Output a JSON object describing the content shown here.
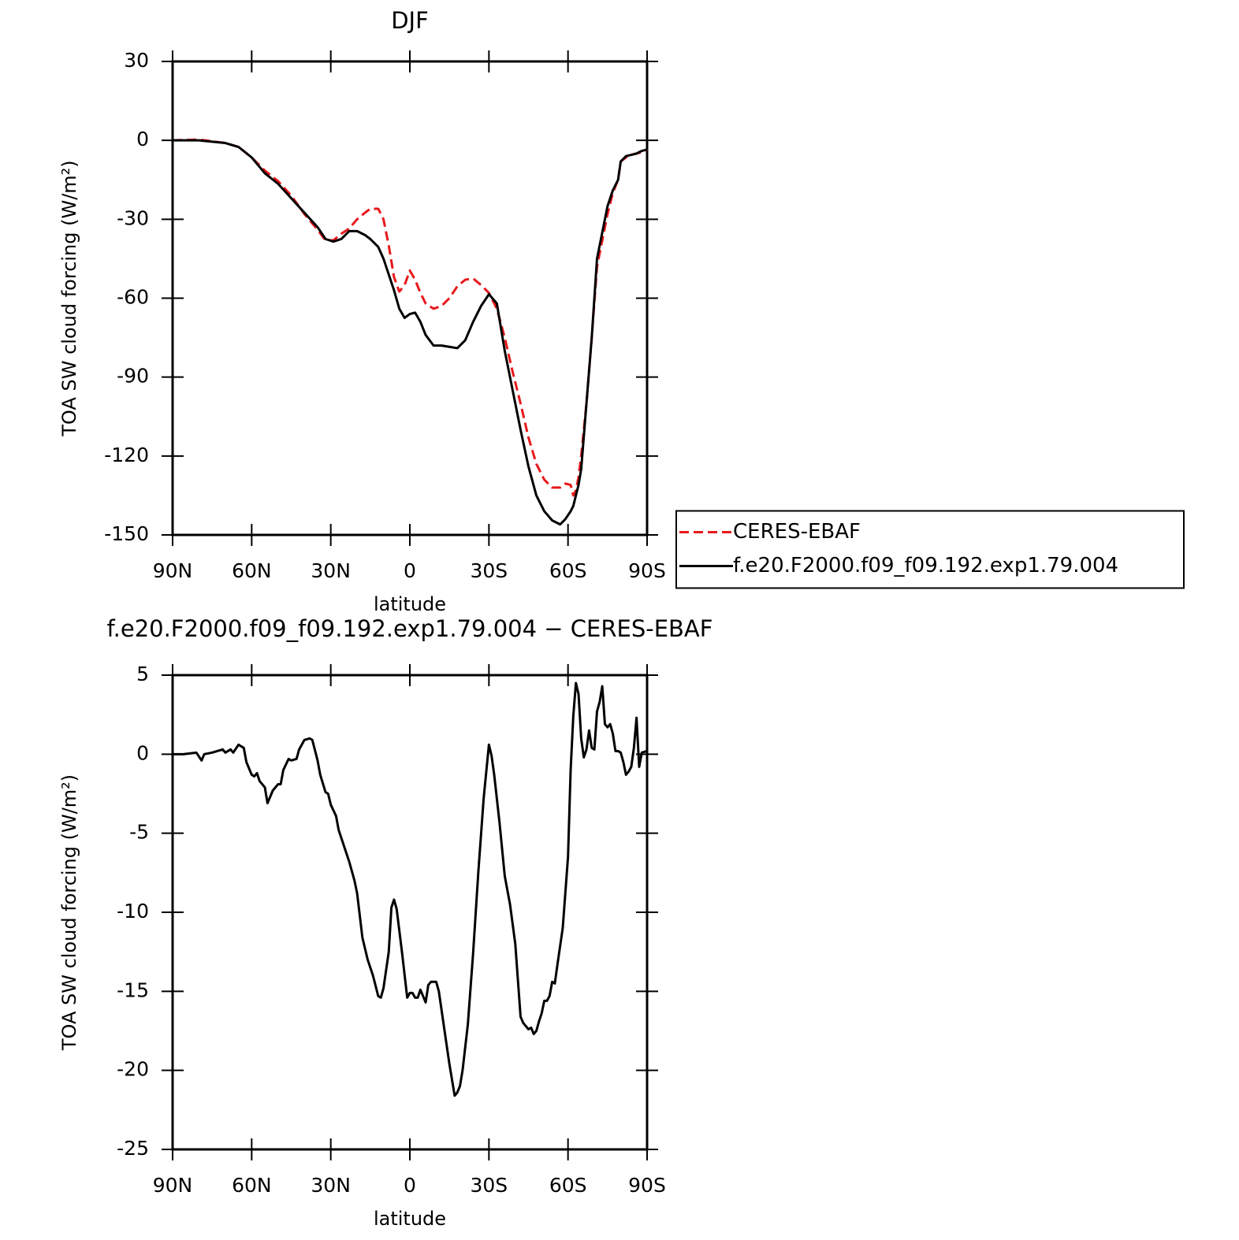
{
  "chart_data": [
    {
      "type": "line",
      "title": "DJF",
      "xlabel": "latitude",
      "ylabel": "TOA SW cloud forcing (W/m²)",
      "x": [
        90,
        80,
        70,
        65,
        60,
        55,
        50,
        45,
        40,
        35,
        32,
        29,
        26,
        23,
        20,
        17,
        15,
        12,
        10,
        8,
        6,
        4,
        2,
        0,
        -2,
        -4,
        -6,
        -9,
        -12,
        -15,
        -18,
        -21,
        -24,
        -27,
        -30,
        -33,
        -36,
        -39,
        -42,
        -45,
        -48,
        -51,
        -54,
        -57,
        -59,
        -61,
        -62,
        -63,
        -64,
        -65,
        -67,
        -69,
        -71,
        -73,
        -75,
        -77,
        -79,
        -80,
        -82,
        -84,
        -86,
        -88,
        -90
      ],
      "series": [
        {
          "name": "CERES-EBAF",
          "color": "#e8191c",
          "line_style": "dashed",
          "values": [
            0,
            0.3,
            -1,
            -2.5,
            -6.5,
            -11.5,
            -15.5,
            -21,
            -28,
            -34,
            -38,
            -38,
            -35.5,
            -33.5,
            -30,
            -27.5,
            -26,
            -26,
            -30,
            -40,
            -52,
            -57.5,
            -55,
            -49.5,
            -53,
            -58,
            -62,
            -64,
            -63,
            -60,
            -55.5,
            -53,
            -52.5,
            -55,
            -58,
            -64,
            -75,
            -88,
            -100,
            -113,
            -123,
            -129,
            -132,
            -132,
            -130.5,
            -131,
            -135,
            -133,
            -128,
            -120,
            -100,
            -75,
            -48,
            -38,
            -28,
            -20,
            -15,
            -8,
            -6.5,
            -5.5,
            -5,
            -4.5,
            -3.5
          ]
        },
        {
          "name": "f.e20.F2000.f09_f09.192.exp1.79.004",
          "color": "#000000",
          "line_style": "solid",
          "values": [
            0,
            0,
            -1,
            -2.5,
            -6.5,
            -12.5,
            -16.5,
            -22,
            -27.5,
            -33,
            -37.5,
            -38.5,
            -37.5,
            -34.5,
            -34.5,
            -36,
            -37.5,
            -40.5,
            -45,
            -51,
            -57,
            -64,
            -67.5,
            -66,
            -65.5,
            -69,
            -74,
            -78,
            -78,
            -78.5,
            -79,
            -76,
            -69,
            -63,
            -58.5,
            -62,
            -80,
            -95,
            -110,
            -124,
            -135,
            -141,
            -144.5,
            -146,
            -144,
            -141,
            -139,
            -135,
            -131,
            -125,
            -100,
            -75,
            -45,
            -35,
            -25,
            -19,
            -15,
            -8,
            -6,
            -5.5,
            -5,
            -4,
            -3.5
          ]
        }
      ],
      "xlim": [
        90,
        -90
      ],
      "xticks": [
        {
          "value": 90,
          "label": "90N"
        },
        {
          "value": 60,
          "label": "60N"
        },
        {
          "value": 30,
          "label": "30N"
        },
        0,
        {
          "value": -30,
          "label": "30S"
        },
        {
          "value": -60,
          "label": "60S"
        },
        {
          "value": -90,
          "label": "90S"
        }
      ],
      "ylim": [
        -150,
        30
      ],
      "yticks": [
        30,
        0,
        -30,
        -60,
        -90,
        -120,
        -150
      ],
      "legend": "right"
    },
    {
      "type": "line",
      "title": "f.e20.F2000.f09_f09.192.exp1.79.004 − CERES-EBAF",
      "xlabel": "latitude",
      "ylabel": "TOA SW cloud forcing (W/m²)",
      "x": [
        90,
        86,
        81,
        79,
        78,
        75,
        71,
        70,
        68,
        67,
        65,
        63,
        62,
        60,
        59,
        58,
        57,
        55,
        54,
        52,
        50,
        49,
        48,
        46,
        45,
        43,
        42,
        40,
        38,
        37,
        35,
        34,
        32,
        31,
        30,
        28,
        27,
        25,
        23,
        21,
        20,
        18,
        16,
        14,
        12,
        11,
        10,
        8,
        7,
        6,
        5,
        3,
        1,
        0,
        -1,
        -2,
        -3,
        -4,
        -5,
        -6,
        -7,
        -8,
        -10,
        -11,
        -13,
        -15,
        -17,
        -18,
        -19,
        -20,
        -22,
        -24,
        -26,
        -28,
        -30,
        -31,
        -32,
        -34,
        -36,
        -38,
        -40,
        -42,
        -43,
        -45,
        -46,
        -47,
        -48,
        -49,
        -50,
        -51,
        -52,
        -53,
        -54,
        -55,
        -56,
        -58,
        -60,
        -61,
        -62,
        -63,
        -64,
        -65,
        -66,
        -67,
        -68,
        -69,
        -70,
        -71,
        -72,
        -73,
        -74,
        -75,
        -76,
        -77,
        -78,
        -79,
        -80,
        -81,
        -82,
        -83,
        -84,
        -85,
        -86,
        -87,
        -88,
        -90
      ],
      "series": [
        {
          "color": "#000000",
          "line_style": "solid",
          "values": [
            0,
            0,
            0.1,
            -0.4,
            0,
            0.1,
            0.3,
            0.1,
            0.3,
            0.1,
            0.6,
            0.4,
            -0.5,
            -1.3,
            -1.4,
            -1.2,
            -1.7,
            -2.1,
            -3.1,
            -2.3,
            -1.9,
            -1.9,
            -1.0,
            -0.3,
            -0.4,
            -0.3,
            0.3,
            0.9,
            1.0,
            0.9,
            -0.4,
            -1.3,
            -2.4,
            -2.5,
            -3.2,
            -3.9,
            -4.8,
            -5.8,
            -6.8,
            -8.0,
            -8.8,
            -11.6,
            -13.0,
            -14.0,
            -15.3,
            -15.4,
            -14.8,
            -12.5,
            -9.7,
            -9.2,
            -9.8,
            -12.5,
            -15.4,
            -15.1,
            -15.1,
            -15.4,
            -15.4,
            -14.9,
            -15.3,
            -15.7,
            -14.6,
            -14.4,
            -14.4,
            -15.0,
            -17.3,
            -19.6,
            -21.6,
            -21.4,
            -21.0,
            -20.0,
            -17.1,
            -12.6,
            -7.4,
            -2.8,
            0.6,
            -0.1,
            -1.3,
            -4.3,
            -7.7,
            -9.5,
            -12.0,
            -16.6,
            -17.0,
            -17.4,
            -17.3,
            -17.7,
            -17.5,
            -16.9,
            -16.4,
            -15.6,
            -15.6,
            -15.3,
            -14.4,
            -14.5,
            -13.3,
            -11.0,
            -6.5,
            -1.0,
            2.4,
            4.5,
            3.8,
            1.0,
            -0.2,
            0.3,
            1.5,
            0.4,
            0.3,
            2.7,
            3.3,
            4.3,
            1.9,
            1.7,
            1.9,
            1.3,
            0.2,
            0.2,
            0.1,
            -0.5,
            -1.3,
            -1.1,
            -0.8,
            0.4,
            2.3,
            -0.8,
            0.1,
            0.2
          ]
        }
      ],
      "xlim": [
        90,
        -90
      ],
      "xticks": [
        {
          "value": 90,
          "label": "90N"
        },
        {
          "value": 60,
          "label": "60N"
        },
        {
          "value": 30,
          "label": "30N"
        },
        0,
        {
          "value": -30,
          "label": "30S"
        },
        {
          "value": -60,
          "label": "60S"
        },
        {
          "value": -90,
          "label": "90S"
        }
      ],
      "ylim": [
        -25,
        5
      ],
      "yticks": [
        5,
        0,
        -5,
        -10,
        -15,
        -20,
        -25
      ]
    }
  ]
}
